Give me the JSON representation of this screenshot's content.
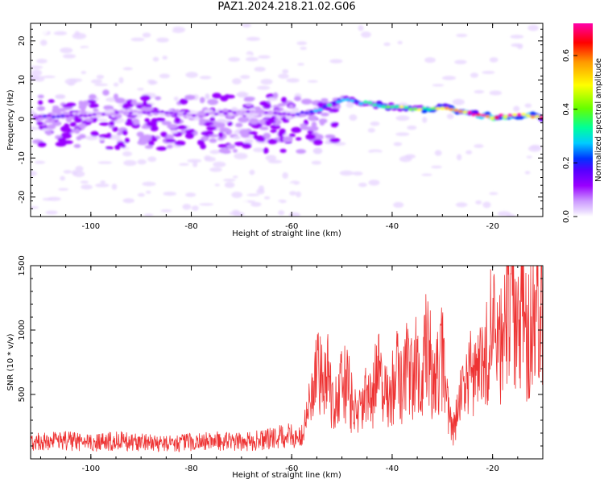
{
  "title": "PAZ1.2024.218.21.02.G06",
  "chart_data": [
    {
      "type": "heatmap",
      "xlabel": "Height of straight line (km)",
      "ylabel": "Frequency (Hz)",
      "xlim": [
        -112,
        -10
      ],
      "ylim": [
        -25,
        24.5
      ],
      "x_ticks": [
        -100,
        -80,
        -60,
        -40,
        -20
      ],
      "y_ticks": [
        20,
        10,
        0,
        -10,
        -20
      ],
      "colorbar": {
        "label": "Normalized spectral amplitude",
        "range": [
          0,
          0.72
        ],
        "ticks": [
          0.0,
          0.2,
          0.4,
          0.6
        ],
        "colormap": [
          "#ffffff",
          "#e8d6ff",
          "#cc99ff",
          "#9900ff",
          "#5500ff",
          "#0033ff",
          "#00ccff",
          "#00ff99",
          "#66ff00",
          "#ffff00",
          "#ff9900",
          "#ff0000",
          "#ff00aa"
        ]
      },
      "ridge": {
        "description_points_x": [
          -110,
          -100,
          -90,
          -80,
          -70,
          -60,
          -55,
          -50,
          -45,
          -40,
          -35,
          -30,
          -25,
          -20,
          -15,
          -10
        ],
        "frequency_hz": [
          0.5,
          1,
          2,
          1,
          2,
          1,
          2,
          5,
          4,
          3,
          2.5,
          3,
          1.5,
          0.5,
          1,
          0.5
        ],
        "amplitude": [
          0.2,
          0.15,
          0.15,
          0.15,
          0.15,
          0.15,
          0.3,
          0.35,
          0.35,
          0.4,
          0.45,
          0.5,
          0.55,
          0.65,
          0.6,
          0.6
        ]
      }
    },
    {
      "type": "line",
      "xlabel": "Height of straight line (km)",
      "ylabel": "SNR (10 * v/v)",
      "xlim": [
        -112,
        -10
      ],
      "ylim": [
        0,
        1500
      ],
      "x_ticks": [
        -100,
        -80,
        -60,
        -40,
        -20
      ],
      "y_ticks": [
        500,
        1000,
        1500
      ],
      "color": "#ee3333",
      "series": [
        {
          "x": [
            -112,
            -105,
            -100,
            -95,
            -90,
            -85,
            -80,
            -75,
            -70,
            -65,
            -61,
            -58,
            -56,
            -55,
            -54,
            -53,
            -52,
            -51,
            -50,
            -49,
            -48,
            -47,
            -46,
            -45,
            -44,
            -43,
            -42,
            -41,
            -40,
            -39,
            -38,
            -37,
            -36,
            -35,
            -34,
            -33,
            -32,
            -31,
            -30,
            -29,
            -28,
            -27,
            -26,
            -25,
            -24,
            -23,
            -22,
            -21,
            -20,
            -19,
            -18,
            -17,
            -16,
            -15,
            -14,
            -13,
            -12,
            -11,
            -10
          ],
          "y": [
            130,
            140,
            120,
            140,
            130,
            120,
            130,
            140,
            130,
            150,
            180,
            170,
            500,
            650,
            600,
            780,
            450,
            480,
            550,
            600,
            420,
            380,
            350,
            500,
            420,
            750,
            580,
            450,
            550,
            650,
            550,
            720,
            600,
            800,
            500,
            1050,
            550,
            650,
            800,
            400,
            200,
            350,
            520,
            600,
            680,
            720,
            780,
            900,
            1000,
            850,
            950,
            1250,
            1300,
            1000,
            1200,
            900,
            1100,
            1050,
            1200
          ]
        }
      ]
    }
  ]
}
